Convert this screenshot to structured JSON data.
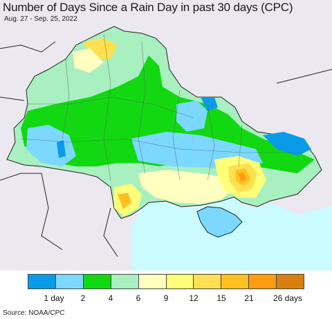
{
  "title": "Number of Days Since a Rain Day in past 30 days (CPC)",
  "subtitle": "Aug. 27 - Sep. 25, 2022",
  "source": "Source: NOAA/CPC",
  "legend": {
    "colors": [
      "#0a9be8",
      "#7cd8ff",
      "#12d812",
      "#a8f0c0",
      "#ffffc0",
      "#ffff78",
      "#ffe050",
      "#ffc020",
      "#ff9c10",
      "#d88010"
    ],
    "labels": [
      {
        "text": "1 day"
      },
      {
        "text": "2"
      },
      {
        "text": "4"
      },
      {
        "text": "6"
      },
      {
        "text": "9"
      },
      {
        "text": "12"
      },
      {
        "text": "15"
      },
      {
        "text": "21"
      },
      {
        "text": "26 days"
      }
    ]
  },
  "colors": {
    "outside": "#ece8ef",
    "sea": "#c9fbff",
    "border": "#222222"
  }
}
